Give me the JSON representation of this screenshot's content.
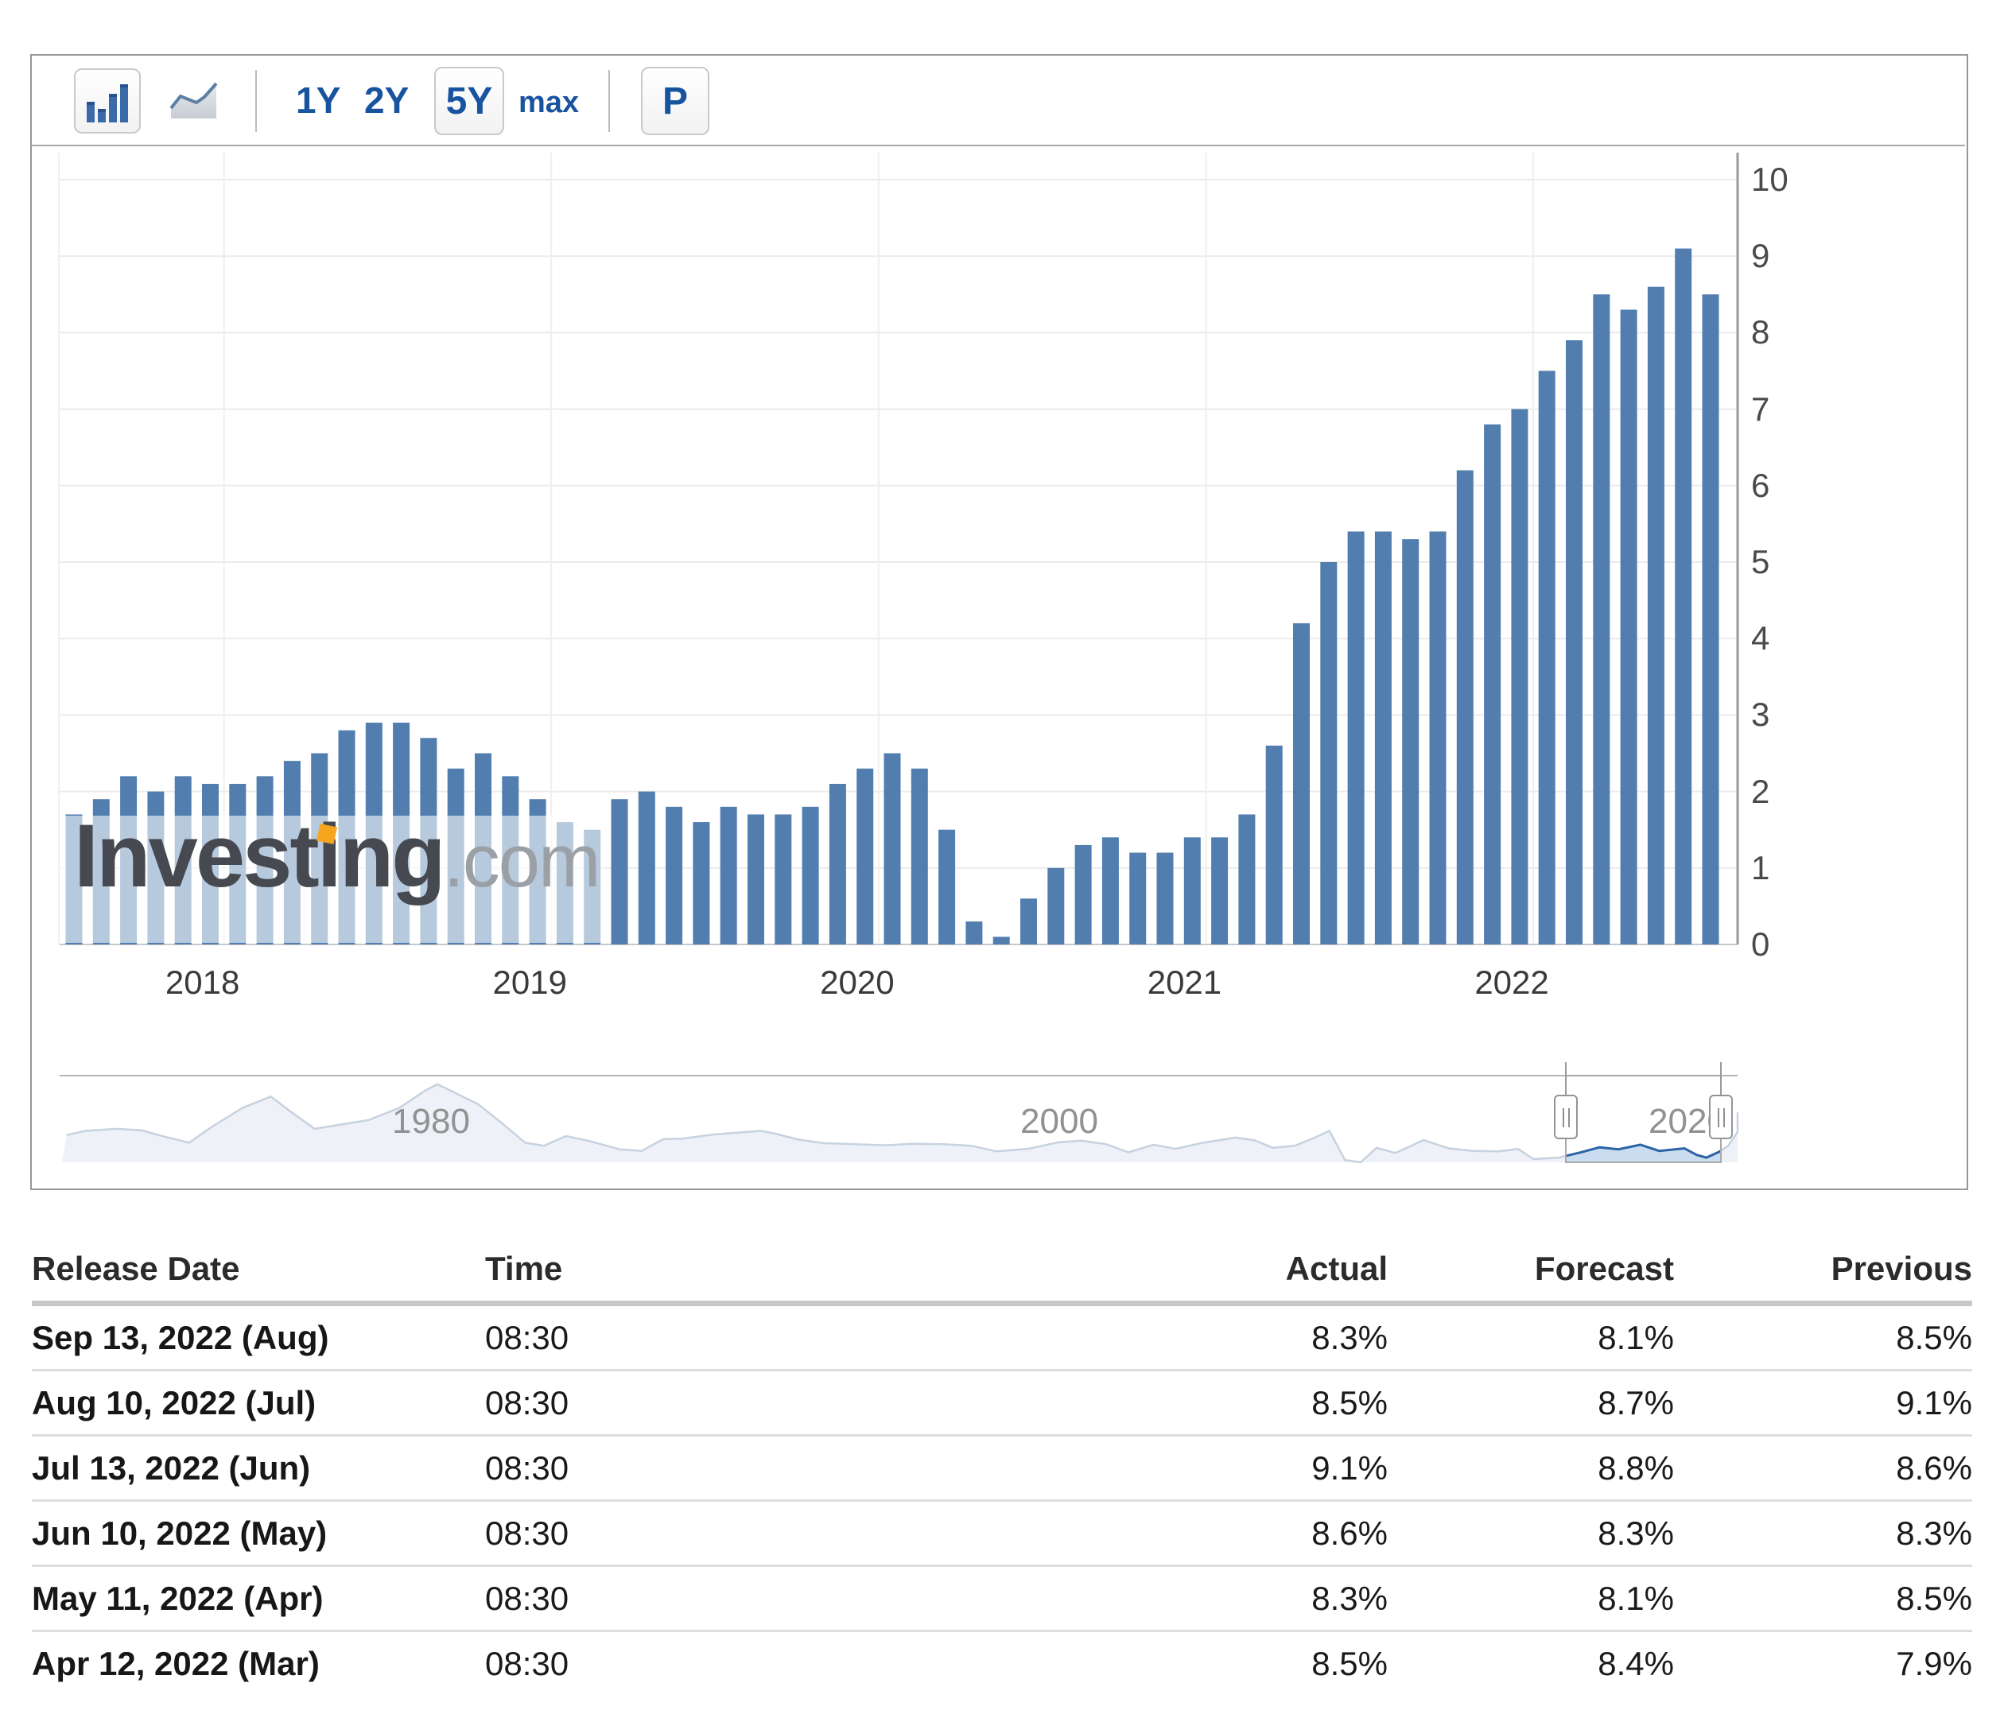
{
  "toolbar": {
    "range_1y": "1Y",
    "range_2y": "2Y",
    "range_5y": "5Y",
    "range_max": "max",
    "compare_p": "P"
  },
  "watermark": {
    "brand_part1": "Invest",
    "brand_i": "i",
    "brand_part2": "ng",
    "brand_suffix": ".com",
    "accent_color": "#f6a51f"
  },
  "chart_data": {
    "type": "bar",
    "unit": "%",
    "bar_color": "#517eae",
    "ylim": [
      0,
      10
    ],
    "ytick_step": 1,
    "categories": [
      "Jul 2017",
      "Aug 2017",
      "Sep 2017",
      "Oct 2017",
      "Nov 2017",
      "Dec 2017",
      "Jan 2018",
      "Feb 2018",
      "Mar 2018",
      "Apr 2018",
      "May 2018",
      "Jun 2018",
      "Jul 2018",
      "Aug 2018",
      "Sep 2018",
      "Oct 2018",
      "Nov 2018",
      "Dec 2018",
      "Jan 2019",
      "Feb 2019",
      "Mar 2019",
      "Apr 2019",
      "May 2019",
      "Jun 2019",
      "Jul 2019",
      "Aug 2019",
      "Sep 2019",
      "Oct 2019",
      "Nov 2019",
      "Dec 2019",
      "Jan 2020",
      "Feb 2020",
      "Mar 2020",
      "Apr 2020",
      "May 2020",
      "Jun 2020",
      "Jul 2020",
      "Aug 2020",
      "Sep 2020",
      "Oct 2020",
      "Nov 2020",
      "Dec 2020",
      "Jan 2021",
      "Feb 2021",
      "Mar 2021",
      "Apr 2021",
      "May 2021",
      "Jun 2021",
      "Jul 2021",
      "Aug 2021",
      "Sep 2021",
      "Oct 2021",
      "Nov 2021",
      "Dec 2021",
      "Jan 2022",
      "Feb 2022",
      "Mar 2022",
      "Apr 2022",
      "May 2022",
      "Jun 2022",
      "Jul 2022"
    ],
    "values": [
      1.7,
      1.9,
      2.2,
      2.0,
      2.2,
      2.1,
      2.1,
      2.2,
      2.4,
      2.5,
      2.8,
      2.9,
      2.9,
      2.7,
      2.3,
      2.5,
      2.2,
      1.9,
      1.6,
      1.5,
      1.9,
      2.0,
      1.8,
      1.6,
      1.8,
      1.7,
      1.7,
      1.8,
      2.1,
      2.3,
      2.5,
      2.3,
      1.5,
      0.3,
      0.1,
      0.6,
      1.0,
      1.3,
      1.4,
      1.2,
      1.2,
      1.4,
      1.4,
      1.7,
      2.6,
      4.2,
      5.0,
      5.4,
      5.4,
      5.3,
      5.4,
      6.2,
      6.8,
      7.0,
      7.5,
      7.9,
      8.5,
      8.3,
      8.6,
      9.1,
      8.5
    ],
    "x_year_labels": [
      "2018",
      "2019",
      "2020",
      "2021",
      "2022"
    ],
    "grid": true,
    "yaxis_position": "right"
  },
  "navigator": {
    "labels": [
      "1980",
      "2000",
      "2020"
    ],
    "series": [
      [
        1968.4,
        4.7
      ],
      [
        1969,
        5.5
      ],
      [
        1970,
        5.9
      ],
      [
        1970.8,
        5.6
      ],
      [
        1971.5,
        4.4
      ],
      [
        1972.3,
        3.2
      ],
      [
        1973,
        6.2
      ],
      [
        1974,
        10.0
      ],
      [
        1974.9,
        12.2
      ],
      [
        1975.5,
        9.4
      ],
      [
        1976.3,
        5.9
      ],
      [
        1977,
        6.6
      ],
      [
        1978,
        7.6
      ],
      [
        1979,
        10.0
      ],
      [
        1979.8,
        13.3
      ],
      [
        1980.2,
        14.6
      ],
      [
        1980.8,
        12.8
      ],
      [
        1981.5,
        10.7
      ],
      [
        1982.3,
        6.8
      ],
      [
        1983,
        3.2
      ],
      [
        1983.6,
        2.6
      ],
      [
        1984.3,
        4.5
      ],
      [
        1985,
        3.6
      ],
      [
        1986,
        1.9
      ],
      [
        1986.7,
        1.6
      ],
      [
        1987.4,
        3.9
      ],
      [
        1988,
        4.0
      ],
      [
        1989,
        4.8
      ],
      [
        1990.5,
        5.5
      ],
      [
        1991,
        4.9
      ],
      [
        1991.7,
        3.8
      ],
      [
        1992.5,
        3.1
      ],
      [
        1993.5,
        2.9
      ],
      [
        1994.5,
        2.7
      ],
      [
        1995.3,
        3.0
      ],
      [
        1996.3,
        2.9
      ],
      [
        1997.2,
        2.6
      ],
      [
        1998,
        1.5
      ],
      [
        1999,
        2.0
      ],
      [
        2000,
        3.3
      ],
      [
        2000.7,
        3.6
      ],
      [
        2001.5,
        2.9
      ],
      [
        2002.2,
        1.3
      ],
      [
        2003,
        2.8
      ],
      [
        2003.7,
        2.0
      ],
      [
        2004.5,
        3.1
      ],
      [
        2005.6,
        4.2
      ],
      [
        2006.2,
        3.7
      ],
      [
        2006.8,
        2.2
      ],
      [
        2007.5,
        2.6
      ],
      [
        2008.1,
        4.1
      ],
      [
        2008.6,
        5.5
      ],
      [
        2009.1,
        -0.2
      ],
      [
        2009.6,
        -1.8
      ],
      [
        2010.1,
        2.2
      ],
      [
        2010.7,
        1.2
      ],
      [
        2011.6,
        3.7
      ],
      [
        2012.4,
        2.1
      ],
      [
        2013.2,
        1.6
      ],
      [
        2014,
        1.5
      ],
      [
        2014.6,
        2.0
      ],
      [
        2015.1,
        0.0
      ],
      [
        2015.9,
        0.3
      ],
      [
        2016.6,
        1.3
      ],
      [
        2017.2,
        2.3
      ],
      [
        2017.8,
        1.9
      ],
      [
        2018.5,
        2.8
      ],
      [
        2019.1,
        1.6
      ],
      [
        2019.9,
        2.1
      ],
      [
        2020.3,
        0.8
      ],
      [
        2020.6,
        0.3
      ],
      [
        2021,
        1.4
      ],
      [
        2021.3,
        2.6
      ],
      [
        2021.6,
        5.3
      ],
      [
        2022,
        7.2
      ],
      [
        2022.5,
        9.1
      ],
      [
        2022.65,
        8.8
      ]
    ],
    "selection": {
      "start_year": 2016.1,
      "end_year": 2021.1
    }
  },
  "table": {
    "headers": {
      "release_date": "Release Date",
      "time": "Time",
      "actual": "Actual",
      "forecast": "Forecast",
      "previous": "Previous"
    },
    "rows": [
      {
        "release_date": "Sep 13, 2022 (Aug)",
        "time": "08:30",
        "actual": "8.3%",
        "actual_color": "green",
        "forecast": "8.1%",
        "previous": "8.5%"
      },
      {
        "release_date": "Aug 10, 2022 (Jul)",
        "time": "08:30",
        "actual": "8.5%",
        "actual_color": "red",
        "forecast": "8.7%",
        "previous": "9.1%"
      },
      {
        "release_date": "Jul 13, 2022 (Jun)",
        "time": "08:30",
        "actual": "9.1%",
        "actual_color": "green",
        "forecast": "8.8%",
        "previous": "8.6%"
      },
      {
        "release_date": "Jun 10, 2022 (May)",
        "time": "08:30",
        "actual": "8.6%",
        "actual_color": "green",
        "forecast": "8.3%",
        "previous": "8.3%"
      },
      {
        "release_date": "May 11, 2022 (Apr)",
        "time": "08:30",
        "actual": "8.3%",
        "actual_color": "green",
        "forecast": "8.1%",
        "previous": "8.5%"
      },
      {
        "release_date": "Apr 12, 2022 (Mar)",
        "time": "08:30",
        "actual": "8.5%",
        "actual_color": "green",
        "forecast": "8.4%",
        "previous": "7.9%"
      }
    ]
  }
}
